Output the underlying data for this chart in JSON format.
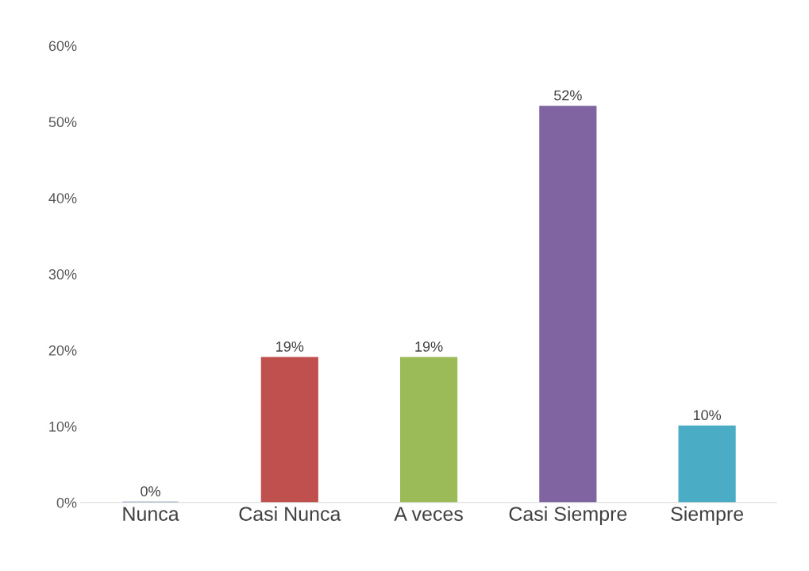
{
  "chart_data": {
    "type": "bar",
    "categories": [
      "Nunca",
      "Casi Nunca",
      "A veces",
      "Casi Siempre",
      "Siempre"
    ],
    "values": [
      0,
      19,
      19,
      52,
      10
    ],
    "colors": [
      "#3a6091",
      "#c0504d",
      "#9bbb59",
      "#8064a2",
      "#4bacc6"
    ],
    "value_labels": [
      "0%",
      "19%",
      "19%",
      "52%",
      "10%"
    ],
    "ylim": [
      0,
      60
    ],
    "yticks": [
      {
        "value": 0,
        "label": "0%"
      },
      {
        "value": 10,
        "label": "10%"
      },
      {
        "value": 20,
        "label": "20%"
      },
      {
        "value": 30,
        "label": "30%"
      },
      {
        "value": 40,
        "label": "40%"
      },
      {
        "value": 50,
        "label": "50%"
      },
      {
        "value": 60,
        "label": "60%"
      }
    ],
    "grid": false,
    "legend": false
  }
}
